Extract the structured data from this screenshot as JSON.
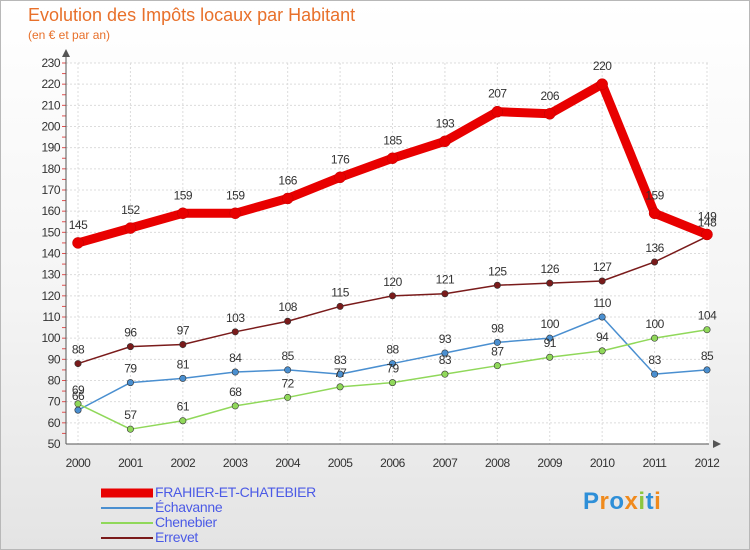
{
  "chart_data": {
    "type": "line",
    "title": "Evolution des Impôts locaux par Habitant",
    "subtitle": "(en € et par an)",
    "categories": [
      "2000",
      "2001",
      "2002",
      "2003",
      "2004",
      "2005",
      "2006",
      "2007",
      "2008",
      "2009",
      "2010",
      "2011",
      "2012"
    ],
    "ylim": [
      50,
      230
    ],
    "ytick_step": 10,
    "grid": true,
    "legend_position": "bottom-left",
    "series": [
      {
        "name": "FRAHIER-ET-CHATEBIER",
        "color": "#e80000",
        "values": [
          145,
          152,
          159,
          159,
          166,
          176,
          185,
          193,
          207,
          206,
          220,
          159,
          149
        ]
      },
      {
        "name": "Échavanne",
        "color": "#4a8fd0",
        "values": [
          66,
          79,
          81,
          84,
          85,
          83,
          88,
          93,
          98,
          100,
          110,
          83,
          85
        ]
      },
      {
        "name": "Chenebier",
        "color": "#90d85a",
        "values": [
          69,
          57,
          61,
          68,
          72,
          77,
          79,
          83,
          87,
          91,
          94,
          100,
          104
        ]
      },
      {
        "name": "Errevet",
        "color": "#7a1b1b",
        "values": [
          88,
          96,
          97,
          103,
          108,
          115,
          120,
          121,
          125,
          126,
          127,
          136,
          148
        ]
      }
    ]
  },
  "logo": {
    "letters": [
      "P",
      "r",
      "o",
      "x",
      "i",
      "t",
      "i"
    ],
    "colors": [
      "#2e8fd8",
      "#f08a1c",
      "#2e8fd8",
      "#f08a1c",
      "#8dc63f",
      "#2e8fd8",
      "#f08a1c"
    ]
  }
}
